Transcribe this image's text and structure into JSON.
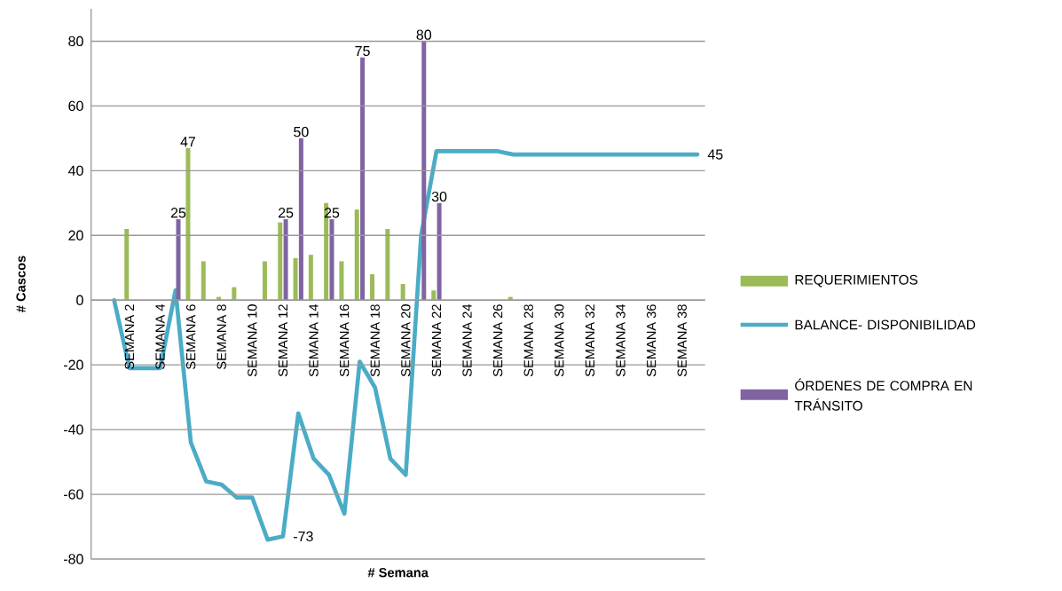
{
  "chart_data": {
    "type": "bar",
    "xlabel": "# Semana",
    "ylabel": "# Cascos",
    "categories": [
      null,
      null,
      "SEMANA 2",
      null,
      "SEMANA 4",
      null,
      "SEMANA 6",
      null,
      "SEMANA 8",
      null,
      "SEMANA 10",
      null,
      "SEMANA 12",
      null,
      "SEMANA 14",
      null,
      "SEMANA 16",
      null,
      "SEMANA 18",
      null,
      "SEMANA 20",
      null,
      "SEMANA 22",
      null,
      "SEMANA 24",
      null,
      "SEMANA 26",
      null,
      "SEMANA 28",
      null,
      "SEMANA 30",
      null,
      "SEMANA 32",
      null,
      "SEMANA 34",
      null,
      "SEMANA 36",
      null,
      "SEMANA 38",
      null
    ],
    "series": [
      {
        "name": "REQUERIMIENTOS",
        "color": "#9bbb59",
        "values": [
          null,
          null,
          22,
          null,
          null,
          null,
          47,
          12,
          1,
          4,
          null,
          12,
          24,
          13,
          14,
          30,
          12,
          28,
          8,
          22,
          5,
          null,
          3,
          null,
          null,
          null,
          null,
          1,
          null,
          null,
          null,
          null,
          null,
          null,
          null,
          null,
          null,
          null,
          null,
          null
        ],
        "value_labels": [
          null,
          null,
          null,
          null,
          null,
          null,
          "47",
          null,
          null,
          null,
          null,
          null,
          null,
          null,
          null,
          null,
          null,
          null,
          null,
          null,
          null,
          null,
          null,
          null,
          null,
          null,
          null,
          null,
          null,
          null,
          null,
          null,
          null,
          null,
          null,
          null,
          null,
          null,
          null,
          null
        ]
      },
      {
        "name": "BALANCE- DISPONIBILIDAD",
        "type": "line",
        "color": "#4bacc6",
        "values": [
          null,
          0,
          -21,
          -21,
          -21,
          3,
          -44,
          -56,
          -57,
          -61,
          -61,
          -74,
          -73,
          -35,
          -49,
          -54,
          -66,
          -19,
          -27,
          -49,
          -54,
          20,
          46,
          46,
          46,
          46,
          46,
          45,
          45,
          45,
          45,
          45,
          45,
          45,
          45,
          45,
          45,
          45,
          45,
          45
        ],
        "value_labels": [
          null,
          null,
          null,
          null,
          null,
          null,
          null,
          null,
          null,
          null,
          null,
          null,
          "-73",
          null,
          null,
          null,
          null,
          null,
          null,
          null,
          null,
          null,
          null,
          null,
          null,
          null,
          null,
          null,
          null,
          null,
          null,
          null,
          null,
          null,
          null,
          null,
          null,
          null,
          null,
          "45"
        ]
      },
      {
        "name": "ÓRDENES DE COMPRA EN TRÁNSITO",
        "color": "#8064a2",
        "values": [
          null,
          null,
          null,
          null,
          null,
          25,
          null,
          null,
          null,
          null,
          null,
          null,
          25,
          50,
          null,
          25,
          null,
          75,
          null,
          null,
          null,
          80,
          30,
          null,
          null,
          null,
          null,
          null,
          null,
          null,
          null,
          null,
          null,
          null,
          null,
          null,
          null,
          null,
          null,
          null
        ],
        "value_labels": [
          null,
          null,
          null,
          null,
          null,
          "25",
          null,
          null,
          null,
          null,
          null,
          null,
          "25",
          "50",
          null,
          "25",
          null,
          "75",
          null,
          null,
          null,
          "80",
          "30",
          null,
          null,
          null,
          null,
          null,
          null,
          null,
          null,
          null,
          null,
          null,
          null,
          null,
          null,
          null,
          null,
          null
        ]
      }
    ],
    "ylim": [
      -80,
      90
    ],
    "yticks": [
      -80,
      -60,
      -40,
      -20,
      0,
      20,
      40,
      60,
      80
    ],
    "grid": "y",
    "legend": "right",
    "marker": "none"
  }
}
